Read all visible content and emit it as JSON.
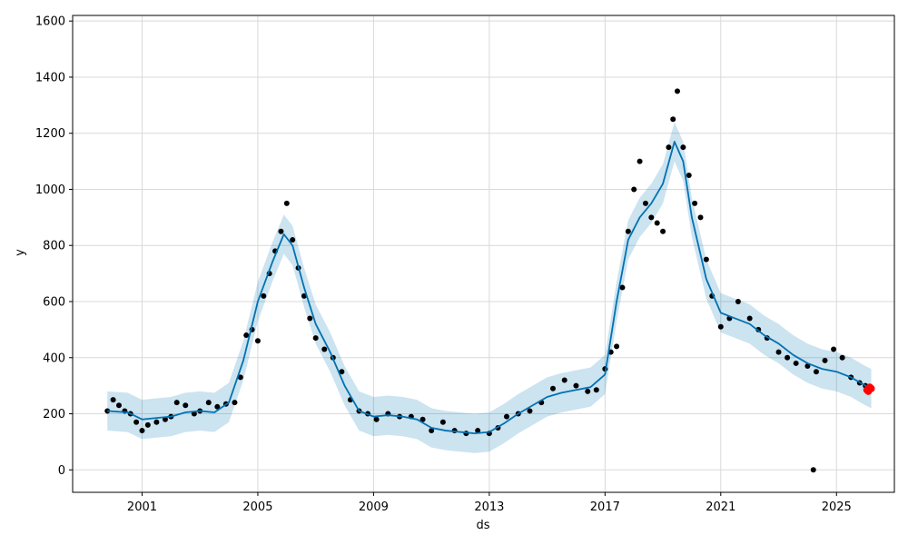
{
  "colors": {
    "points": "#000000",
    "forecast_line": "#0072B2",
    "uncertainty_band": "#0072B2",
    "highlight_points": "#ff0000",
    "grid": "#d9d9d9",
    "axis": "#000000"
  },
  "chart_data": {
    "type": "line",
    "title": "",
    "xlabel": "ds",
    "ylabel": "y",
    "xlim": [
      1998.6,
      2027.0
    ],
    "ylim": [
      -80,
      1620
    ],
    "grid": true,
    "x_ticks": [
      2001,
      2005,
      2009,
      2013,
      2017,
      2021,
      2025
    ],
    "x_tick_labels": [
      "2001",
      "2005",
      "2009",
      "2013",
      "2017",
      "2021",
      "2025"
    ],
    "y_ticks": [
      0,
      200,
      400,
      600,
      800,
      1000,
      1200,
      1400,
      1600
    ],
    "y_tick_labels": [
      "0",
      "200",
      "400",
      "600",
      "800",
      "1000",
      "1200",
      "1400",
      "1600"
    ],
    "series": [
      {
        "kind": "observed_points",
        "x": [
          1999.8,
          2000.0,
          2000.2,
          2000.4,
          2000.6,
          2000.8,
          2001.0,
          2001.2,
          2001.5,
          2001.8,
          2002.0,
          2002.2,
          2002.5,
          2002.8,
          2003.0,
          2003.3,
          2003.6,
          2003.9,
          2004.2,
          2004.4,
          2004.6,
          2004.8,
          2005.0,
          2005.2,
          2005.4,
          2005.6,
          2005.8,
          2006.0,
          2006.2,
          2006.4,
          2006.6,
          2006.8,
          2007.0,
          2007.3,
          2007.6,
          2007.9,
          2008.2,
          2008.5,
          2008.8,
          2009.1,
          2009.5,
          2009.9,
          2010.3,
          2010.7,
          2011.0,
          2011.4,
          2011.8,
          2012.2,
          2012.6,
          2013.0,
          2013.3,
          2013.6,
          2014.0,
          2014.4,
          2014.8,
          2015.2,
          2015.6,
          2016.0,
          2016.4,
          2016.7,
          2017.0,
          2017.2,
          2017.4,
          2017.6,
          2017.8,
          2018.0,
          2018.2,
          2018.4,
          2018.6,
          2018.8,
          2019.0,
          2019.2,
          2019.35,
          2019.5,
          2019.7,
          2019.9,
          2020.1,
          2020.3,
          2020.5,
          2020.7,
          2021.0,
          2021.3,
          2021.6,
          2022.0,
          2022.3,
          2022.6,
          2023.0,
          2023.3,
          2023.6,
          2024.0,
          2024.3,
          2024.6,
          2024.9,
          2025.2,
          2025.5,
          2025.8,
          2026.0,
          2026.2
        ],
        "y": [
          210,
          250,
          230,
          210,
          200,
          170,
          140,
          160,
          170,
          180,
          190,
          240,
          230,
          200,
          210,
          240,
          225,
          235,
          240,
          330,
          480,
          500,
          460,
          620,
          700,
          780,
          850,
          950,
          820,
          720,
          620,
          540,
          470,
          430,
          400,
          350,
          250,
          210,
          200,
          180,
          200,
          190,
          190,
          180,
          140,
          170,
          140,
          130,
          140,
          130,
          150,
          190,
          200,
          210,
          240,
          290,
          320,
          300,
          280,
          285,
          360,
          420,
          440,
          650,
          850,
          1000,
          1100,
          950,
          900,
          880,
          850,
          1150,
          1250,
          1350,
          1150,
          1050,
          950,
          900,
          750,
          620,
          510,
          540,
          600,
          540,
          500,
          470,
          420,
          400,
          380,
          370,
          350,
          390,
          430,
          400,
          330,
          310,
          300,
          290
        ]
      },
      {
        "kind": "forecast_line",
        "x": [
          1999.8,
          2000.5,
          2001.0,
          2001.5,
          2002.0,
          2002.5,
          2003.0,
          2003.5,
          2004.0,
          2004.5,
          2005.0,
          2005.5,
          2005.9,
          2006.2,
          2006.6,
          2007.0,
          2007.5,
          2008.0,
          2008.5,
          2009.0,
          2009.5,
          2010.0,
          2010.5,
          2011.0,
          2011.5,
          2012.0,
          2012.5,
          2013.0,
          2013.5,
          2014.0,
          2014.5,
          2015.0,
          2015.5,
          2016.0,
          2016.5,
          2017.0,
          2017.4,
          2017.8,
          2018.2,
          2018.6,
          2019.0,
          2019.4,
          2019.7,
          2020.0,
          2020.5,
          2021.0,
          2021.5,
          2022.0,
          2022.5,
          2023.0,
          2023.5,
          2024.0,
          2024.5,
          2025.0,
          2025.5,
          2026.0,
          2026.2
        ],
        "y": [
          210,
          205,
          180,
          185,
          190,
          205,
          210,
          205,
          240,
          390,
          600,
          740,
          840,
          800,
          650,
          520,
          420,
          300,
          210,
          190,
          195,
          190,
          180,
          150,
          140,
          135,
          130,
          135,
          165,
          200,
          230,
          260,
          275,
          285,
          295,
          340,
          600,
          820,
          900,
          950,
          1020,
          1170,
          1100,
          900,
          680,
          560,
          540,
          520,
          480,
          450,
          410,
          380,
          360,
          350,
          330,
          300,
          290
        ]
      },
      {
        "kind": "uncertainty_band",
        "x": [
          1999.8,
          2000.5,
          2001.0,
          2001.5,
          2002.0,
          2002.5,
          2003.0,
          2003.5,
          2004.0,
          2004.5,
          2005.0,
          2005.5,
          2005.9,
          2006.2,
          2006.6,
          2007.0,
          2007.5,
          2008.0,
          2008.5,
          2009.0,
          2009.5,
          2010.0,
          2010.5,
          2011.0,
          2011.5,
          2012.0,
          2012.5,
          2013.0,
          2013.5,
          2014.0,
          2014.5,
          2015.0,
          2015.5,
          2016.0,
          2016.5,
          2017.0,
          2017.4,
          2017.8,
          2018.2,
          2018.6,
          2019.0,
          2019.4,
          2019.7,
          2020.0,
          2020.5,
          2021.0,
          2021.5,
          2022.0,
          2022.5,
          2023.0,
          2023.5,
          2024.0,
          2024.5,
          2025.0,
          2025.5,
          2026.0,
          2026.2
        ],
        "lower": [
          140,
          135,
          110,
          115,
          120,
          135,
          140,
          135,
          170,
          320,
          530,
          670,
          770,
          730,
          580,
          450,
          350,
          230,
          140,
          120,
          125,
          120,
          110,
          80,
          70,
          65,
          60,
          65,
          95,
          130,
          160,
          190,
          205,
          215,
          225,
          270,
          530,
          750,
          830,
          880,
          950,
          1100,
          1030,
          830,
          610,
          490,
          470,
          450,
          410,
          380,
          340,
          310,
          290,
          280,
          260,
          230,
          220
        ],
        "upper": [
          280,
          275,
          250,
          255,
          260,
          275,
          280,
          275,
          310,
          460,
          670,
          810,
          910,
          870,
          720,
          590,
          490,
          370,
          280,
          260,
          265,
          260,
          250,
          220,
          210,
          205,
          200,
          205,
          235,
          270,
          300,
          330,
          345,
          355,
          365,
          410,
          670,
          890,
          970,
          1020,
          1090,
          1240,
          1170,
          970,
          750,
          630,
          610,
          590,
          550,
          520,
          480,
          450,
          430,
          420,
          400,
          370,
          360
        ]
      },
      {
        "kind": "highlight_points",
        "x": [
          2026.05,
          2026.1,
          2026.15,
          2026.2
        ],
        "y": [
          285,
          280,
          295,
          290
        ]
      },
      {
        "kind": "outlier",
        "x": [
          2024.2
        ],
        "y": [
          0
        ]
      }
    ]
  }
}
